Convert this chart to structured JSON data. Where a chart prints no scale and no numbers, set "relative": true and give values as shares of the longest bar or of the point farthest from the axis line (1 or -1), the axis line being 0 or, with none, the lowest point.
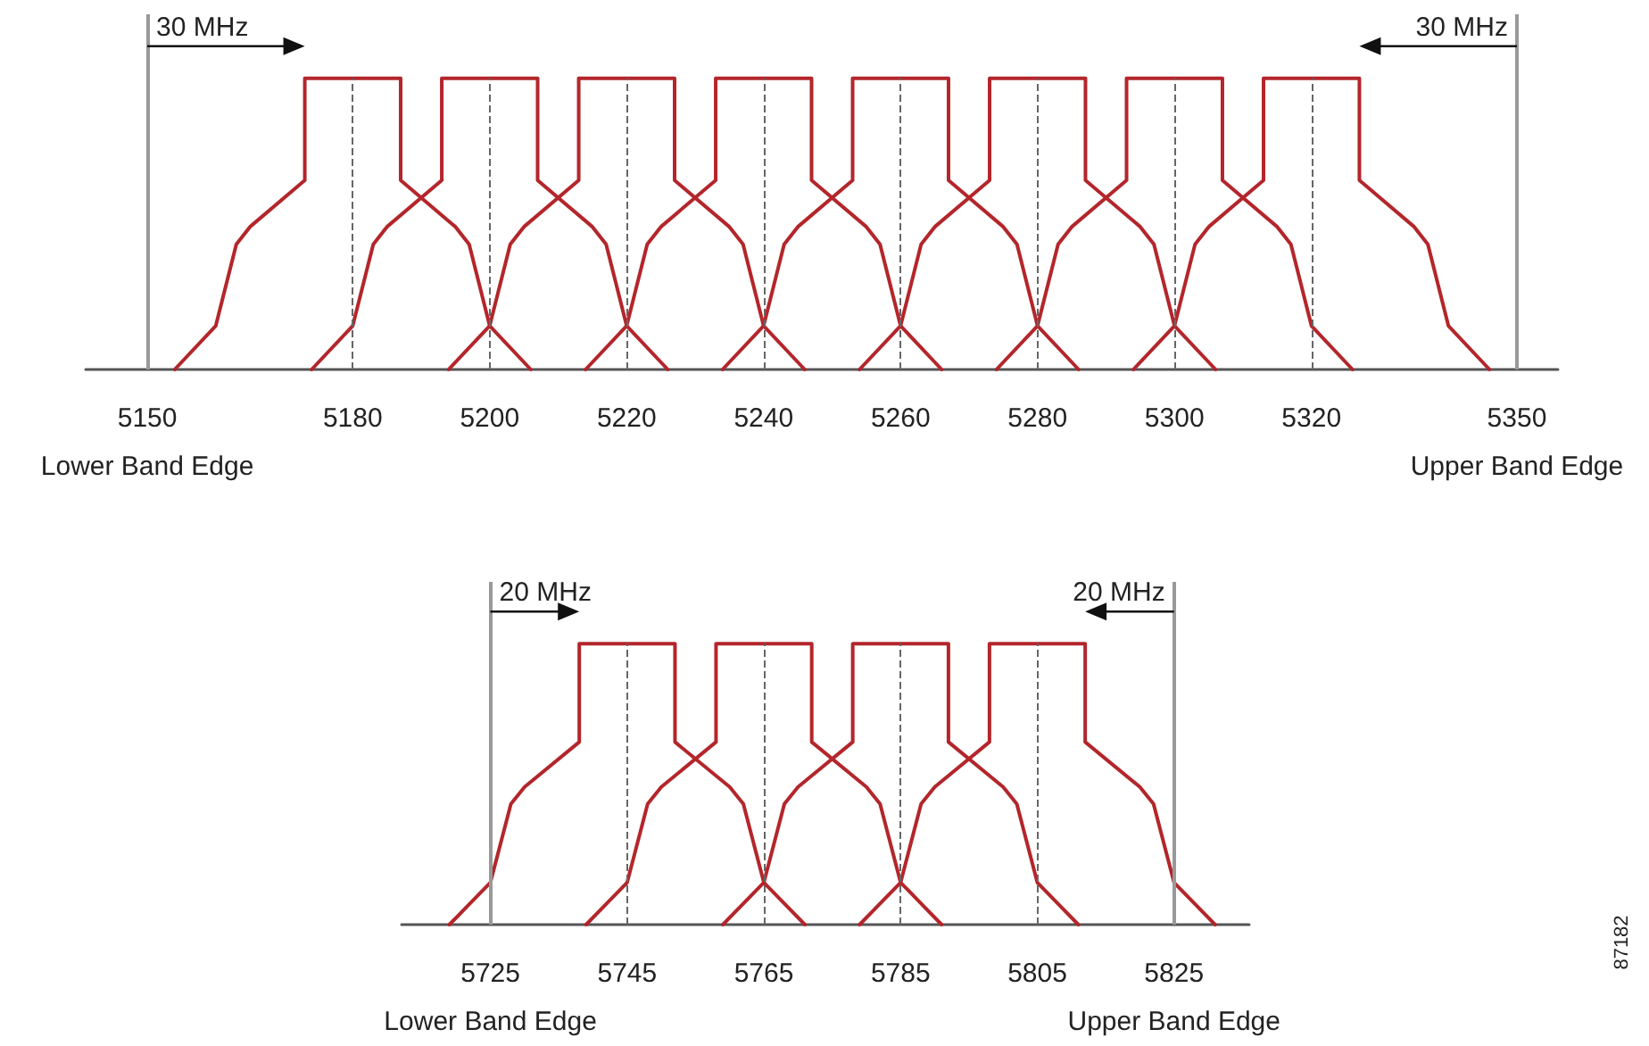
{
  "chart_data": [
    {
      "type": "line",
      "relative": true,
      "tick_labels": "x",
      "grid": false,
      "marker": "none",
      "line_style": "solid",
      "xlim": [
        5141,
        5356
      ],
      "xticks": [
        {
          "value": 5150,
          "label": "5150\nLower Band Edge"
        },
        5180,
        5200,
        5220,
        5240,
        5260,
        5280,
        5300,
        5320,
        {
          "value": 5350,
          "label": "5350\nUpper Band Edge"
        }
      ],
      "series": [
        {
          "color": "#b3262b",
          "x": [
            5154,
            5160,
            5163,
            5165,
            5173,
            5173,
            5187,
            5187,
            5195,
            5197,
            5200,
            5206
          ],
          "values": [
            0,
            0.15,
            0.43,
            0.49,
            0.65,
            1,
            1,
            0.65,
            0.49,
            0.43,
            0.15,
            0
          ]
        },
        {
          "color": "#b3262b",
          "x": [
            5174,
            5180,
            5183,
            5185,
            5193,
            5193,
            5207,
            5207,
            5215,
            5217,
            5220,
            5226
          ],
          "values": [
            0,
            0.15,
            0.43,
            0.49,
            0.65,
            1,
            1,
            0.65,
            0.49,
            0.43,
            0.15,
            0
          ]
        },
        {
          "color": "#b3262b",
          "x": [
            5194,
            5200,
            5203,
            5205,
            5213,
            5213,
            5227,
            5227,
            5235,
            5237,
            5240,
            5246
          ],
          "values": [
            0,
            0.15,
            0.43,
            0.49,
            0.65,
            1,
            1,
            0.65,
            0.49,
            0.43,
            0.15,
            0
          ]
        },
        {
          "color": "#b3262b",
          "x": [
            5214,
            5220,
            5223,
            5225,
            5233,
            5233,
            5247,
            5247,
            5255,
            5257,
            5260,
            5266
          ],
          "values": [
            0,
            0.15,
            0.43,
            0.49,
            0.65,
            1,
            1,
            0.65,
            0.49,
            0.43,
            0.15,
            0
          ]
        },
        {
          "color": "#b3262b",
          "x": [
            5234,
            5240,
            5243,
            5245,
            5253,
            5253,
            5267,
            5267,
            5275,
            5277,
            5280,
            5286
          ],
          "values": [
            0,
            0.15,
            0.43,
            0.49,
            0.65,
            1,
            1,
            0.65,
            0.49,
            0.43,
            0.15,
            0
          ]
        },
        {
          "color": "#b3262b",
          "x": [
            5254,
            5260,
            5263,
            5265,
            5273,
            5273,
            5287,
            5287,
            5295,
            5297,
            5300,
            5306
          ],
          "values": [
            0,
            0.15,
            0.43,
            0.49,
            0.65,
            1,
            1,
            0.65,
            0.49,
            0.43,
            0.15,
            0
          ]
        },
        {
          "color": "#b3262b",
          "x": [
            5274,
            5280,
            5283,
            5285,
            5293,
            5293,
            5307,
            5307,
            5315,
            5317,
            5320,
            5326
          ],
          "values": [
            0,
            0.15,
            0.43,
            0.49,
            0.65,
            1,
            1,
            0.65,
            0.49,
            0.43,
            0.15,
            0
          ]
        },
        {
          "color": "#b3262b",
          "x": [
            5294,
            5300,
            5303,
            5305,
            5313,
            5313,
            5327,
            5327,
            5335,
            5337,
            5340,
            5346
          ],
          "values": [
            0,
            0.15,
            0.43,
            0.49,
            0.65,
            1,
            1,
            0.65,
            0.49,
            0.43,
            0.15,
            0
          ]
        }
      ],
      "ref_lines": [
        {
          "axis": "x",
          "value": 5150,
          "color": "#999999",
          "line_style": "solid"
        },
        {
          "axis": "x",
          "value": 5350,
          "color": "#999999",
          "line_style": "solid"
        },
        {
          "axis": "x",
          "value": 5180,
          "color": "#666666",
          "line_style": "dashed"
        },
        {
          "axis": "x",
          "value": 5200,
          "color": "#666666",
          "line_style": "dashed"
        },
        {
          "axis": "x",
          "value": 5220,
          "color": "#666666",
          "line_style": "dashed"
        },
        {
          "axis": "x",
          "value": 5240,
          "color": "#666666",
          "line_style": "dashed"
        },
        {
          "axis": "x",
          "value": 5260,
          "color": "#666666",
          "line_style": "dashed"
        },
        {
          "axis": "x",
          "value": 5280,
          "color": "#666666",
          "line_style": "dashed"
        },
        {
          "axis": "x",
          "value": 5300,
          "color": "#666666",
          "line_style": "dashed"
        },
        {
          "axis": "x",
          "value": 5320,
          "color": "#666666",
          "line_style": "dashed"
        }
      ],
      "annotations": [
        "30 MHz",
        "30 MHz"
      ]
    },
    {
      "type": "line",
      "relative": true,
      "tick_labels": "x",
      "grid": false,
      "marker": "none",
      "line_style": "solid",
      "xlim": [
        5712,
        5836
      ],
      "xticks": [
        {
          "value": 5725,
          "label": "5725\nLower Band Edge"
        },
        5745,
        5765,
        5785,
        5805,
        {
          "value": 5825,
          "label": "5825\nUpper Band Edge"
        }
      ],
      "series": [
        {
          "color": "#b3262b",
          "x": [
            5719,
            5725,
            5728,
            5730,
            5738,
            5738,
            5752,
            5752,
            5760,
            5762,
            5765,
            5771
          ],
          "values": [
            0,
            0.15,
            0.43,
            0.49,
            0.65,
            1,
            1,
            0.65,
            0.49,
            0.43,
            0.15,
            0
          ]
        },
        {
          "color": "#b3262b",
          "x": [
            5739,
            5745,
            5748,
            5750,
            5758,
            5758,
            5772,
            5772,
            5780,
            5782,
            5785,
            5791
          ],
          "values": [
            0,
            0.15,
            0.43,
            0.49,
            0.65,
            1,
            1,
            0.65,
            0.49,
            0.43,
            0.15,
            0
          ]
        },
        {
          "color": "#b3262b",
          "x": [
            5759,
            5765,
            5768,
            5770,
            5778,
            5778,
            5792,
            5792,
            5800,
            5802,
            5805,
            5811
          ],
          "values": [
            0,
            0.15,
            0.43,
            0.49,
            0.65,
            1,
            1,
            0.65,
            0.49,
            0.43,
            0.15,
            0
          ]
        },
        {
          "color": "#b3262b",
          "x": [
            5779,
            5785,
            5788,
            5790,
            5798,
            5798,
            5812,
            5812,
            5820,
            5822,
            5825,
            5831
          ],
          "values": [
            0,
            0.15,
            0.43,
            0.49,
            0.65,
            1,
            1,
            0.65,
            0.49,
            0.43,
            0.15,
            0
          ]
        }
      ],
      "ref_lines": [
        {
          "axis": "x",
          "value": 5725,
          "color": "#999999",
          "line_style": "solid"
        },
        {
          "axis": "x",
          "value": 5825,
          "color": "#999999",
          "line_style": "solid"
        },
        {
          "axis": "x",
          "value": 5745,
          "color": "#666666",
          "line_style": "dashed"
        },
        {
          "axis": "x",
          "value": 5765,
          "color": "#666666",
          "line_style": "dashed"
        },
        {
          "axis": "x",
          "value": 5785,
          "color": "#666666",
          "line_style": "dashed"
        },
        {
          "axis": "x",
          "value": 5805,
          "color": "#666666",
          "line_style": "dashed"
        }
      ],
      "annotations": [
        "20 MHz",
        "20 MHz",
        "87182"
      ]
    }
  ]
}
